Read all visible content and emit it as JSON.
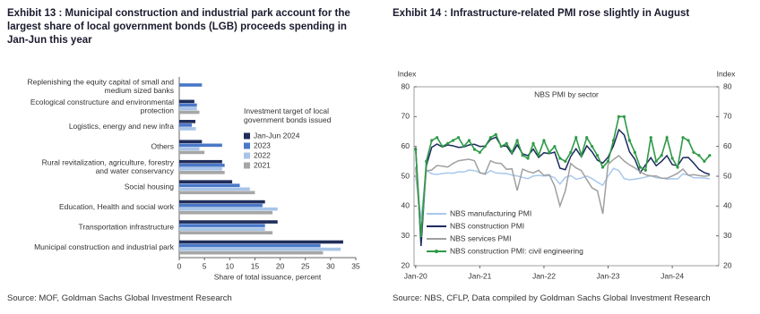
{
  "chart_data": [
    {
      "type": "bar",
      "orientation": "horizontal",
      "title": "Exhibit 13 : Municipal construction and industrial park account for the largest share of local government bonds (LGB) proceeds spending in Jan-Jun this year",
      "categories": [
        "Replenishing the equity capital of small and medium sized banks",
        "Ecological constructure and environmental protection",
        "Logistics, energy and new infra",
        "Others",
        "Rural revitalization, agriculture, forestry and water conservancy",
        "Social housing",
        "Education, Health and social work",
        "Transportation infrastructure",
        "Municipal construction and industrial park"
      ],
      "legend_title": "Investment target of local government bonds issued",
      "series": [
        {
          "name": "Jan-Jun 2024",
          "color": "#1f2d5a",
          "values": [
            null,
            3,
            3.2,
            4.5,
            8.5,
            10.5,
            17,
            19.5,
            32.5
          ]
        },
        {
          "name": "2023",
          "color": "#4a78c8",
          "values": [
            4.5,
            3.5,
            2.5,
            8.5,
            9,
            12,
            16.5,
            17,
            28
          ]
        },
        {
          "name": "2022",
          "color": "#a8c4e8",
          "values": [
            null,
            3.5,
            3.3,
            4,
            8.5,
            14,
            19.5,
            17,
            32
          ]
        },
        {
          "name": "2021",
          "color": "#a6a6a6",
          "values": [
            null,
            4,
            null,
            5,
            9,
            15,
            18.5,
            18.5,
            28.5
          ]
        }
      ],
      "xlim": [
        0,
        35
      ],
      "xticks": [
        0,
        5,
        10,
        15,
        20,
        25,
        30,
        35
      ],
      "x_label": "Share of total issuance, percent",
      "legend": "right",
      "source": "Source: MOF, Goldman Sachs Global Investment Research"
    },
    {
      "type": "line",
      "title": "Exhibit 14 : Infrastructure-related PMI rose slightly in August",
      "subtitle": "NBS PMI by sector",
      "y_label": "Index",
      "y2_label": "Index",
      "categories": [
        "Jan-20",
        null,
        null,
        null,
        null,
        null,
        null,
        null,
        null,
        null,
        null,
        null,
        "Jan-21",
        null,
        null,
        null,
        null,
        null,
        null,
        null,
        null,
        null,
        null,
        null,
        "Jan-22",
        null,
        null,
        null,
        null,
        null,
        null,
        null,
        null,
        null,
        null,
        null,
        "Jan-23",
        null,
        null,
        null,
        null,
        null,
        null,
        null,
        null,
        null,
        null,
        null,
        "Jan-24",
        null,
        null,
        null,
        null,
        null,
        null,
        null
      ],
      "series": [
        {
          "name": "NBS manufacturing PMI",
          "color": "#a9c8ec",
          "values": [
            50.0,
            35.7,
            52.0,
            50.8,
            50.6,
            50.9,
            51.1,
            51.0,
            51.5,
            51.4,
            52.1,
            51.9,
            51.3,
            50.6,
            51.9,
            51.1,
            51.0,
            50.9,
            50.4,
            50.1,
            49.6,
            49.2,
            50.1,
            50.3,
            50.1,
            50.2,
            49.5,
            47.4,
            49.6,
            50.2,
            49.0,
            49.4,
            50.1,
            49.2,
            48.0,
            47.0,
            50.1,
            52.6,
            51.9,
            49.2,
            48.8,
            49.0,
            49.3,
            49.7,
            50.2,
            49.5,
            49.4,
            49.0,
            49.2,
            49.1,
            50.8,
            50.4,
            49.5,
            49.5,
            49.4,
            49.1
          ]
        },
        {
          "name": "NBS construction PMI",
          "color": "#1c2b5e",
          "values": [
            59.7,
            26.6,
            53.6,
            59.7,
            60.8,
            59.8,
            60.5,
            60.2,
            59.7,
            59.8,
            60.5,
            60.7,
            60.0,
            60.1,
            62.3,
            63.1,
            60.1,
            60.1,
            57.5,
            60.5,
            57.5,
            56.9,
            59.1,
            56.3,
            57.9,
            57.6,
            58.1,
            52.7,
            52.2,
            56.6,
            59.2,
            56.5,
            60.2,
            58.2,
            55.4,
            54.4,
            56.4,
            60.2,
            65.6,
            63.9,
            58.2,
            55.7,
            51.2,
            53.8,
            56.2,
            53.5,
            55.0,
            56.9,
            53.9,
            53.5,
            56.2,
            56.3,
            54.4,
            52.3,
            51.2,
            50.6
          ]
        },
        {
          "name": "NBS services PMI",
          "color": "#a0a0a0",
          "values": [
            53.1,
            30.1,
            51.8,
            52.1,
            53.6,
            53.4,
            53.1,
            54.3,
            55.2,
            55.5,
            55.7,
            55.2,
            51.1,
            50.8,
            55.2,
            54.4,
            54.3,
            52.3,
            52.5,
            45.2,
            52.4,
            51.6,
            51.1,
            52.0,
            50.3,
            50.5,
            46.7,
            40.0,
            45.1,
            54.3,
            52.8,
            51.9,
            48.9,
            46.1,
            45.1,
            37.4,
            54.0,
            55.6,
            56.9,
            55.1,
            53.8,
            52.8,
            51.5,
            50.5,
            50.1,
            50.1,
            49.3,
            49.3,
            50.1,
            51.0,
            52.4,
            50.3,
            50.5,
            50.2,
            50.0,
            50.2
          ]
        },
        {
          "name": "NBS construction PMI: civil engineering",
          "color": "#2e9a47",
          "markers": true,
          "values": [
            59,
            30,
            55,
            62,
            63,
            60,
            61,
            62,
            63,
            60,
            62,
            59,
            58,
            60,
            63,
            64,
            60,
            61,
            58,
            62,
            57,
            56,
            61,
            57,
            62,
            58,
            60,
            56,
            55,
            58,
            63,
            57,
            63,
            60,
            57,
            53,
            55,
            62,
            70,
            70,
            62,
            58,
            53,
            52,
            63,
            55,
            57,
            63,
            56,
            53,
            63,
            62,
            58,
            57,
            55,
            57
          ]
        }
      ],
      "ylim": [
        20,
        80
      ],
      "yticks": [
        20,
        30,
        40,
        50,
        60,
        70,
        80
      ],
      "y2lim": [
        20,
        80
      ],
      "y2ticks": [
        20,
        30,
        40,
        50,
        60,
        70,
        80
      ],
      "legend": "lower left",
      "source": "Source: NBS, CFLP, Data compiled by Goldman Sachs Global Investment Research"
    }
  ]
}
